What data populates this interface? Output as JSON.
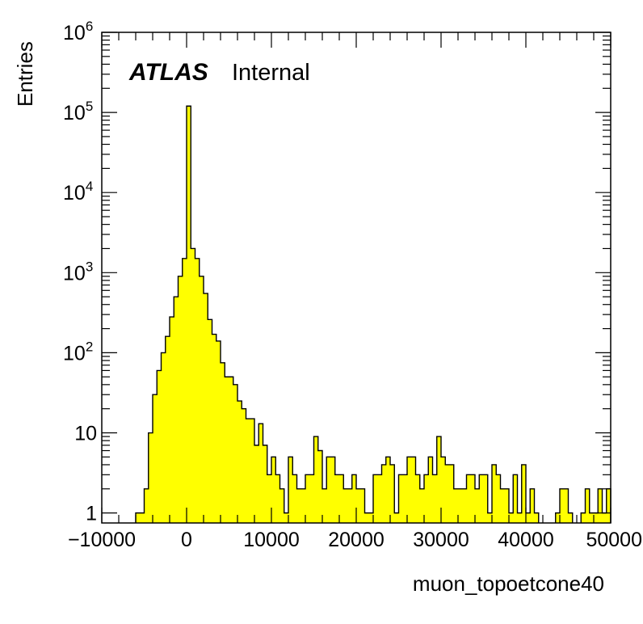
{
  "chart_data": {
    "type": "bar",
    "histogram": true,
    "xlabel": "muon_topoetcone40",
    "ylabel": "Entries",
    "xlim": [
      -10000,
      50000
    ],
    "ylim": [
      0.75,
      1000000
    ],
    "y_scale": "log",
    "bin_width": 500,
    "x_ticks": [
      -10000,
      0,
      10000,
      20000,
      30000,
      40000,
      50000
    ],
    "x_tick_labels": [
      "−10000",
      "0",
      "10000",
      "20000",
      "30000",
      "40000",
      "50000"
    ],
    "y_ticks": [
      1,
      10,
      100,
      1000,
      10000,
      100000,
      1000000
    ],
    "y_tick_labels": [
      {
        "base": "1",
        "exp": ""
      },
      {
        "base": "10",
        "exp": ""
      },
      {
        "base": "10",
        "exp": "2"
      },
      {
        "base": "10",
        "exp": "3"
      },
      {
        "base": "10",
        "exp": "4"
      },
      {
        "base": "10",
        "exp": "5"
      },
      {
        "base": "10",
        "exp": "6"
      }
    ],
    "grid": false,
    "fill_color": "#ffff00",
    "line_color": "#000000",
    "annotation": {
      "bold": "ATLAS",
      "plain": "Internal"
    },
    "bins": [
      [
        -5750,
        1
      ],
      [
        -5250,
        1
      ],
      [
        -4750,
        2
      ],
      [
        -4250,
        10
      ],
      [
        -3750,
        30
      ],
      [
        -3250,
        60
      ],
      [
        -2750,
        100
      ],
      [
        -2250,
        160
      ],
      [
        -1750,
        280
      ],
      [
        -1250,
        500
      ],
      [
        -750,
        900
      ],
      [
        -250,
        1500
      ],
      [
        250,
        120000
      ],
      [
        750,
        2000
      ],
      [
        1250,
        1500
      ],
      [
        1750,
        900
      ],
      [
        2250,
        550
      ],
      [
        2750,
        260
      ],
      [
        3250,
        170
      ],
      [
        3750,
        140
      ],
      [
        4250,
        75
      ],
      [
        4750,
        50
      ],
      [
        5250,
        50
      ],
      [
        5750,
        40
      ],
      [
        6250,
        25
      ],
      [
        6750,
        20
      ],
      [
        7250,
        15
      ],
      [
        7750,
        15
      ],
      [
        8250,
        7
      ],
      [
        8750,
        13
      ],
      [
        9250,
        7
      ],
      [
        9750,
        3
      ],
      [
        10250,
        5
      ],
      [
        10750,
        3
      ],
      [
        11250,
        2
      ],
      [
        11750,
        1
      ],
      [
        12250,
        5
      ],
      [
        12750,
        3
      ],
      [
        13250,
        2
      ],
      [
        13750,
        2
      ],
      [
        14250,
        3
      ],
      [
        14750,
        3
      ],
      [
        15250,
        9
      ],
      [
        15750,
        6
      ],
      [
        16250,
        2
      ],
      [
        16750,
        5
      ],
      [
        17250,
        5
      ],
      [
        17750,
        3
      ],
      [
        18250,
        3
      ],
      [
        18750,
        2
      ],
      [
        19250,
        2
      ],
      [
        19750,
        3
      ],
      [
        20250,
        2
      ],
      [
        20750,
        2
      ],
      [
        21250,
        1
      ],
      [
        21750,
        1
      ],
      [
        22250,
        3
      ],
      [
        22750,
        3
      ],
      [
        23250,
        4
      ],
      [
        23750,
        5
      ],
      [
        24250,
        4
      ],
      [
        24750,
        1
      ],
      [
        25250,
        3
      ],
      [
        25750,
        3
      ],
      [
        26250,
        5
      ],
      [
        26750,
        5
      ],
      [
        27250,
        3
      ],
      [
        27750,
        2
      ],
      [
        28250,
        3
      ],
      [
        28750,
        5
      ],
      [
        29250,
        3
      ],
      [
        29750,
        9
      ],
      [
        30250,
        5
      ],
      [
        30750,
        4
      ],
      [
        31250,
        4
      ],
      [
        31750,
        2
      ],
      [
        32250,
        2
      ],
      [
        32750,
        2
      ],
      [
        33250,
        3
      ],
      [
        33750,
        3
      ],
      [
        34250,
        2
      ],
      [
        34750,
        3
      ],
      [
        35250,
        3
      ],
      [
        35750,
        1
      ],
      [
        36250,
        4
      ],
      [
        36750,
        3
      ],
      [
        37250,
        2
      ],
      [
        37750,
        2
      ],
      [
        38250,
        1
      ],
      [
        38750,
        3
      ],
      [
        39250,
        1
      ],
      [
        39750,
        4
      ],
      [
        40250,
        1
      ],
      [
        40750,
        2
      ],
      [
        41250,
        1
      ],
      [
        43750,
        1
      ],
      [
        44250,
        2
      ],
      [
        44750,
        2
      ],
      [
        45250,
        1
      ],
      [
        46750,
        1
      ],
      [
        47250,
        2
      ],
      [
        47750,
        1
      ],
      [
        48250,
        1
      ],
      [
        48750,
        2
      ],
      [
        49250,
        1
      ],
      [
        49750,
        2
      ]
    ]
  }
}
